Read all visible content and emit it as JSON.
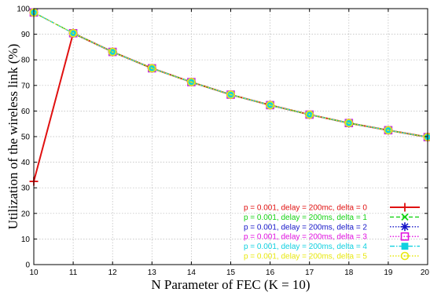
{
  "chart_data": {
    "type": "line",
    "title": "",
    "xlabel": "N Parameter of FEC (K = 10)",
    "ylabel": "Utilization of the wireless link (%)",
    "xlim": [
      10,
      20
    ],
    "ylim": [
      0,
      100
    ],
    "x_ticks": [
      "10",
      "11",
      "12",
      "13",
      "14",
      "15",
      "16",
      "17",
      "18",
      "19",
      "20"
    ],
    "y_ticks": [
      "0",
      "10",
      "20",
      "30",
      "40",
      "50",
      "60",
      "70",
      "80",
      "90",
      "100"
    ],
    "grid": true,
    "legend_position": "bottom-right",
    "x": [
      10,
      11,
      12,
      13,
      14,
      15,
      16,
      17,
      18,
      19,
      20
    ],
    "series": [
      {
        "name": "p = 0.001, delay = 200mc, delta = 0",
        "color": "#e01010",
        "marker": "plus",
        "dash": "solid",
        "values": [
          32.5,
          90.4,
          83.1,
          76.7,
          71.3,
          66.4,
          62.3,
          58.6,
          55.3,
          52.5,
          49.8
        ]
      },
      {
        "name": "p = 0.001, delay = 200ms, delta = 1",
        "color": "#14d214",
        "marker": "cross",
        "dash": "dashed",
        "values": [
          98.5,
          90.4,
          83.1,
          76.7,
          71.3,
          66.4,
          62.3,
          58.6,
          55.3,
          52.5,
          49.8
        ]
      },
      {
        "name": "p = 0.001, delay = 200ms, delta = 2",
        "color": "#1515c8",
        "marker": "star",
        "dash": "dotted",
        "values": [
          98.5,
          90.4,
          83.1,
          76.7,
          71.3,
          66.4,
          62.3,
          58.6,
          55.3,
          52.5,
          49.8
        ]
      },
      {
        "name": "p = 0.001, delay = 200ms, delta = 3",
        "color": "#e010e0",
        "marker": "square",
        "dash": "dotted",
        "values": [
          98.5,
          90.4,
          83.1,
          76.7,
          71.3,
          66.4,
          62.3,
          58.6,
          55.3,
          52.5,
          49.8
        ]
      },
      {
        "name": "p = 0.001, delay = 200ms, delta = 4",
        "color": "#10d0e0",
        "marker": "filled-square",
        "dash": "dashdot",
        "values": [
          98.5,
          90.4,
          83.1,
          76.7,
          71.3,
          66.4,
          62.3,
          58.6,
          55.3,
          52.5,
          49.8
        ]
      },
      {
        "name": "p = 0.001, delay = 200ms, delta = 5",
        "color": "#e8e810",
        "marker": "circle",
        "dash": "dotted",
        "values": [
          98.5,
          90.4,
          83.1,
          76.7,
          71.3,
          66.4,
          62.3,
          58.6,
          55.3,
          52.5,
          49.8
        ]
      }
    ]
  }
}
